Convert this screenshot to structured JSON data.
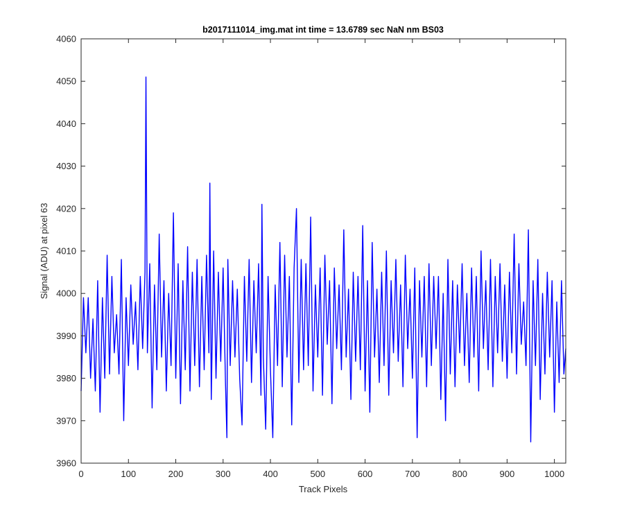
{
  "chart_data": {
    "type": "line",
    "title": "b2017111014_img.mat int time = 13.6789 sec  NaN nm BS03",
    "xlabel": "Track Pixels",
    "ylabel": "Signal (ADU) at pixel 63",
    "xlim": [
      0,
      1024
    ],
    "ylim": [
      3960,
      4060
    ],
    "xticks": [
      0,
      100,
      200,
      300,
      400,
      500,
      600,
      700,
      800,
      900,
      1000
    ],
    "yticks": [
      3960,
      3970,
      3980,
      3990,
      4000,
      4010,
      4020,
      4030,
      4040,
      4050,
      4060
    ],
    "grid": false,
    "legend": "none",
    "series_color": "#0000ff",
    "series": [
      {
        "x": [
          0,
          5,
          10,
          15,
          20,
          25,
          30,
          35,
          40,
          45,
          50,
          55,
          60,
          65,
          70,
          75,
          80,
          85,
          90,
          95,
          100,
          105,
          110,
          115,
          120,
          125,
          130,
          135,
          137,
          140,
          145,
          150,
          155,
          160,
          165,
          170,
          175,
          180,
          185,
          190,
          195,
          200,
          205,
          210,
          215,
          220,
          225,
          230,
          235,
          240,
          245,
          250,
          255,
          260,
          265,
          270,
          272,
          275,
          280,
          285,
          290,
          295,
          300,
          305,
          308,
          310,
          315,
          320,
          325,
          330,
          335,
          340,
          345,
          350,
          355,
          360,
          365,
          370,
          375,
          380,
          382,
          385,
          390,
          395,
          400,
          405,
          410,
          415,
          420,
          425,
          430,
          435,
          440,
          445,
          450,
          455,
          460,
          465,
          470,
          475,
          480,
          485,
          490,
          495,
          500,
          505,
          510,
          515,
          520,
          525,
          530,
          535,
          540,
          545,
          550,
          555,
          560,
          565,
          570,
          575,
          580,
          585,
          590,
          595,
          600,
          605,
          610,
          615,
          620,
          625,
          630,
          635,
          640,
          645,
          650,
          655,
          660,
          665,
          670,
          675,
          680,
          685,
          690,
          695,
          700,
          705,
          710,
          715,
          720,
          725,
          730,
          735,
          740,
          745,
          750,
          755,
          760,
          765,
          770,
          775,
          780,
          785,
          790,
          795,
          800,
          805,
          810,
          815,
          820,
          825,
          830,
          835,
          840,
          845,
          850,
          855,
          860,
          865,
          870,
          875,
          880,
          885,
          890,
          895,
          900,
          905,
          910,
          915,
          920,
          925,
          930,
          935,
          940,
          945,
          950,
          955,
          960,
          965,
          970,
          975,
          980,
          985,
          990,
          995,
          1000,
          1005,
          1010,
          1015,
          1020,
          1024
        ],
        "y": [
          3977,
          3999,
          3986,
          3999,
          3980,
          3994,
          3977,
          4003,
          3972,
          3999,
          3980,
          4009,
          3981,
          4004,
          3986,
          3995,
          3981,
          4008,
          3970,
          3999,
          3983,
          4002,
          3988,
          3998,
          3982,
          4004,
          3987,
          4005,
          4051,
          3986,
          4007,
          3973,
          4002,
          3982,
          4014,
          3985,
          4003,
          3977,
          4000,
          3983,
          4019,
          3980,
          4007,
          3974,
          4003,
          3982,
          4011,
          3977,
          4005,
          3983,
          4008,
          3978,
          4004,
          3982,
          4009,
          3986,
          4026,
          3975,
          4010,
          3980,
          4005,
          3984,
          4006,
          3979,
          3966,
          4008,
          3983,
          4003,
          3985,
          4001,
          3980,
          3969,
          4004,
          3984,
          4008,
          3979,
          4003,
          3986,
          4007,
          3976,
          4021,
          3985,
          3968,
          4004,
          3982,
          3966,
          4002,
          3983,
          4012,
          3978,
          4009,
          3985,
          4004,
          3969,
          4006,
          4020,
          3979,
          4008,
          3982,
          4007,
          3983,
          4018,
          3977,
          4002,
          3985,
          4006,
          3976,
          4009,
          3988,
          4003,
          3974,
          4006,
          3987,
          4002,
          3982,
          4015,
          3985,
          4001,
          3975,
          4005,
          3984,
          4004,
          3982,
          4016,
          3977,
          4003,
          3972,
          4012,
          3985,
          4001,
          3979,
          4005,
          3983,
          4010,
          3976,
          4003,
          3986,
          4008,
          3984,
          4002,
          3978,
          4009,
          3987,
          4001,
          3980,
          4006,
          3966,
          4003,
          3985,
          4004,
          3978,
          4007,
          3983,
          4004,
          3987,
          4004,
          3975,
          4000,
          3970,
          4008,
          3981,
          4003,
          3978,
          4002,
          3986,
          4007,
          3983,
          4000,
          3979,
          4006,
          3985,
          4004,
          3977,
          4010,
          3987,
          4003,
          3982,
          4008,
          3978,
          4004,
          3986,
          4007,
          3984,
          4002,
          3980,
          4005,
          3986,
          4014,
          3981,
          4007,
          3988,
          3998,
          3983,
          4015,
          3965,
          4003,
          3983,
          4008,
          3975,
          4000,
          3981,
          4005,
          3985,
          4003,
          3972,
          3998,
          3979,
          4003,
          3981,
          3987
        ]
      }
    ]
  }
}
